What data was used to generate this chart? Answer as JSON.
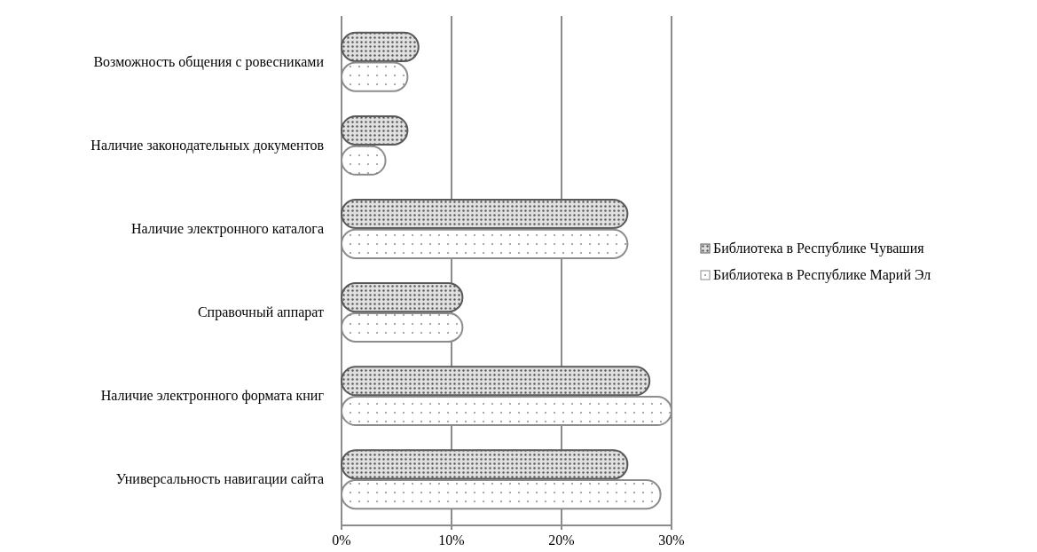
{
  "chart_data": {
    "type": "bar",
    "orientation": "horizontal",
    "categories": [
      "Возможность общения с ровесниками",
      "Наличие законодательных документов",
      "Наличие электронного каталога",
      "Справочный аппарат",
      "Наличие электронного формата книг",
      "Универсальность навигации сайта"
    ],
    "series": [
      {
        "name": "Библиотека в Республике Чувашия",
        "color": "#595959",
        "values": [
          7,
          6,
          26,
          11,
          28,
          26
        ]
      },
      {
        "name": "Библиотека в Республике Марий Эл",
        "color": "#8c8c8c",
        "values": [
          6,
          4,
          26,
          11,
          30,
          29
        ]
      }
    ],
    "xlim": [
      0,
      30
    ],
    "xticks": [
      {
        "value": 0,
        "label": "0%"
      },
      {
        "value": 10,
        "label": "10%"
      },
      {
        "value": 20,
        "label": "20%"
      },
      {
        "value": 30,
        "label": "30%"
      }
    ],
    "grid": "x",
    "legend": "right"
  }
}
